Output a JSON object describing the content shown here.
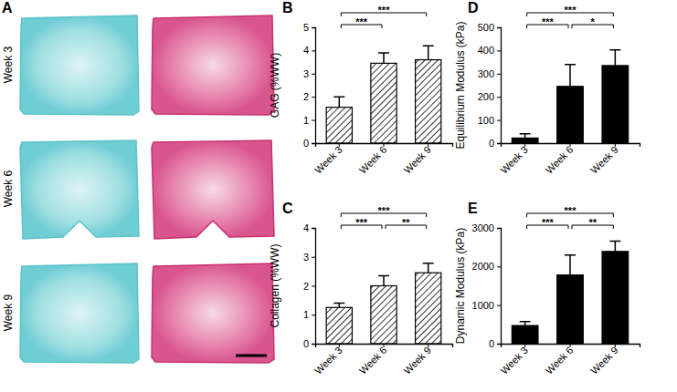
{
  "images": {
    "label": "A",
    "rows": [
      "Week 3",
      "Week 6",
      "Week 9"
    ]
  },
  "chart_data": [
    {
      "type": "bar",
      "title": "B",
      "categories": [
        "Week 3",
        "Week 6",
        "Week 9"
      ],
      "values": [
        1.55,
        3.45,
        3.6
      ],
      "errors": [
        0.45,
        0.45,
        0.6
      ],
      "color": "#000000",
      "ylabel": "GAG (%WW)",
      "ylim": [
        0,
        5
      ],
      "yticks": [
        0,
        1,
        2,
        3,
        4,
        5
      ],
      "annotations": [
        {
          "text": "***",
          "x": [
            "Week 3",
            "Week 6"
          ]
        },
        {
          "text": "***",
          "x": [
            "Week 3",
            "Week 9"
          ]
        }
      ]
    },
    {
      "type": "bar",
      "title": "C",
      "categories": [
        "Week 3",
        "Week 6",
        "Week 9"
      ],
      "values": [
        1.25,
        2.0,
        2.45
      ],
      "errors": [
        0.15,
        0.35,
        0.33
      ],
      "color": "#000000",
      "ylabel": "Collagen (%WW)",
      "ylim": [
        0,
        4
      ],
      "yticks": [
        0,
        1,
        2,
        3,
        4
      ],
      "annotations": [
        {
          "text": "***",
          "x": [
            "Week 3",
            "Week 6"
          ]
        },
        {
          "text": "**",
          "x": [
            "Week 6",
            "Week 9"
          ]
        },
        {
          "text": "***",
          "x": [
            "Week 3",
            "Week 9"
          ]
        }
      ]
    },
    {
      "type": "bar",
      "title": "D",
      "categories": [
        "Week 3",
        "Week 6",
        "Week 9"
      ],
      "values": [
        22,
        245,
        335
      ],
      "errors": [
        18,
        95,
        68
      ],
      "color": "#000000",
      "ylabel": "Equilibrium Modulus (kPa)",
      "ylim": [
        0,
        500
      ],
      "yticks": [
        0,
        100,
        200,
        300,
        400,
        500
      ],
      "annotations": [
        {
          "text": "***",
          "x": [
            "Week 3",
            "Week 6"
          ]
        },
        {
          "text": "*",
          "x": [
            "Week 6",
            "Week 9"
          ]
        },
        {
          "text": "***",
          "x": [
            "Week 3",
            "Week 9"
          ]
        }
      ]
    },
    {
      "type": "bar",
      "title": "E",
      "categories": [
        "Week 3",
        "Week 6",
        "Week 9"
      ],
      "values": [
        470,
        1780,
        2390
      ],
      "errors": [
        100,
        520,
        270
      ],
      "color": "#000000",
      "ylabel": "Dynamic Modulus (kPa)",
      "ylim": [
        0,
        3000
      ],
      "yticks": [
        0,
        1000,
        2000,
        3000
      ],
      "annotations": [
        {
          "text": "***",
          "x": [
            "Week 3",
            "Week 6"
          ]
        },
        {
          "text": "**",
          "x": [
            "Week 6",
            "Week 9"
          ]
        },
        {
          "text": "***",
          "x": [
            "Week 3",
            "Week 9"
          ]
        }
      ]
    }
  ]
}
